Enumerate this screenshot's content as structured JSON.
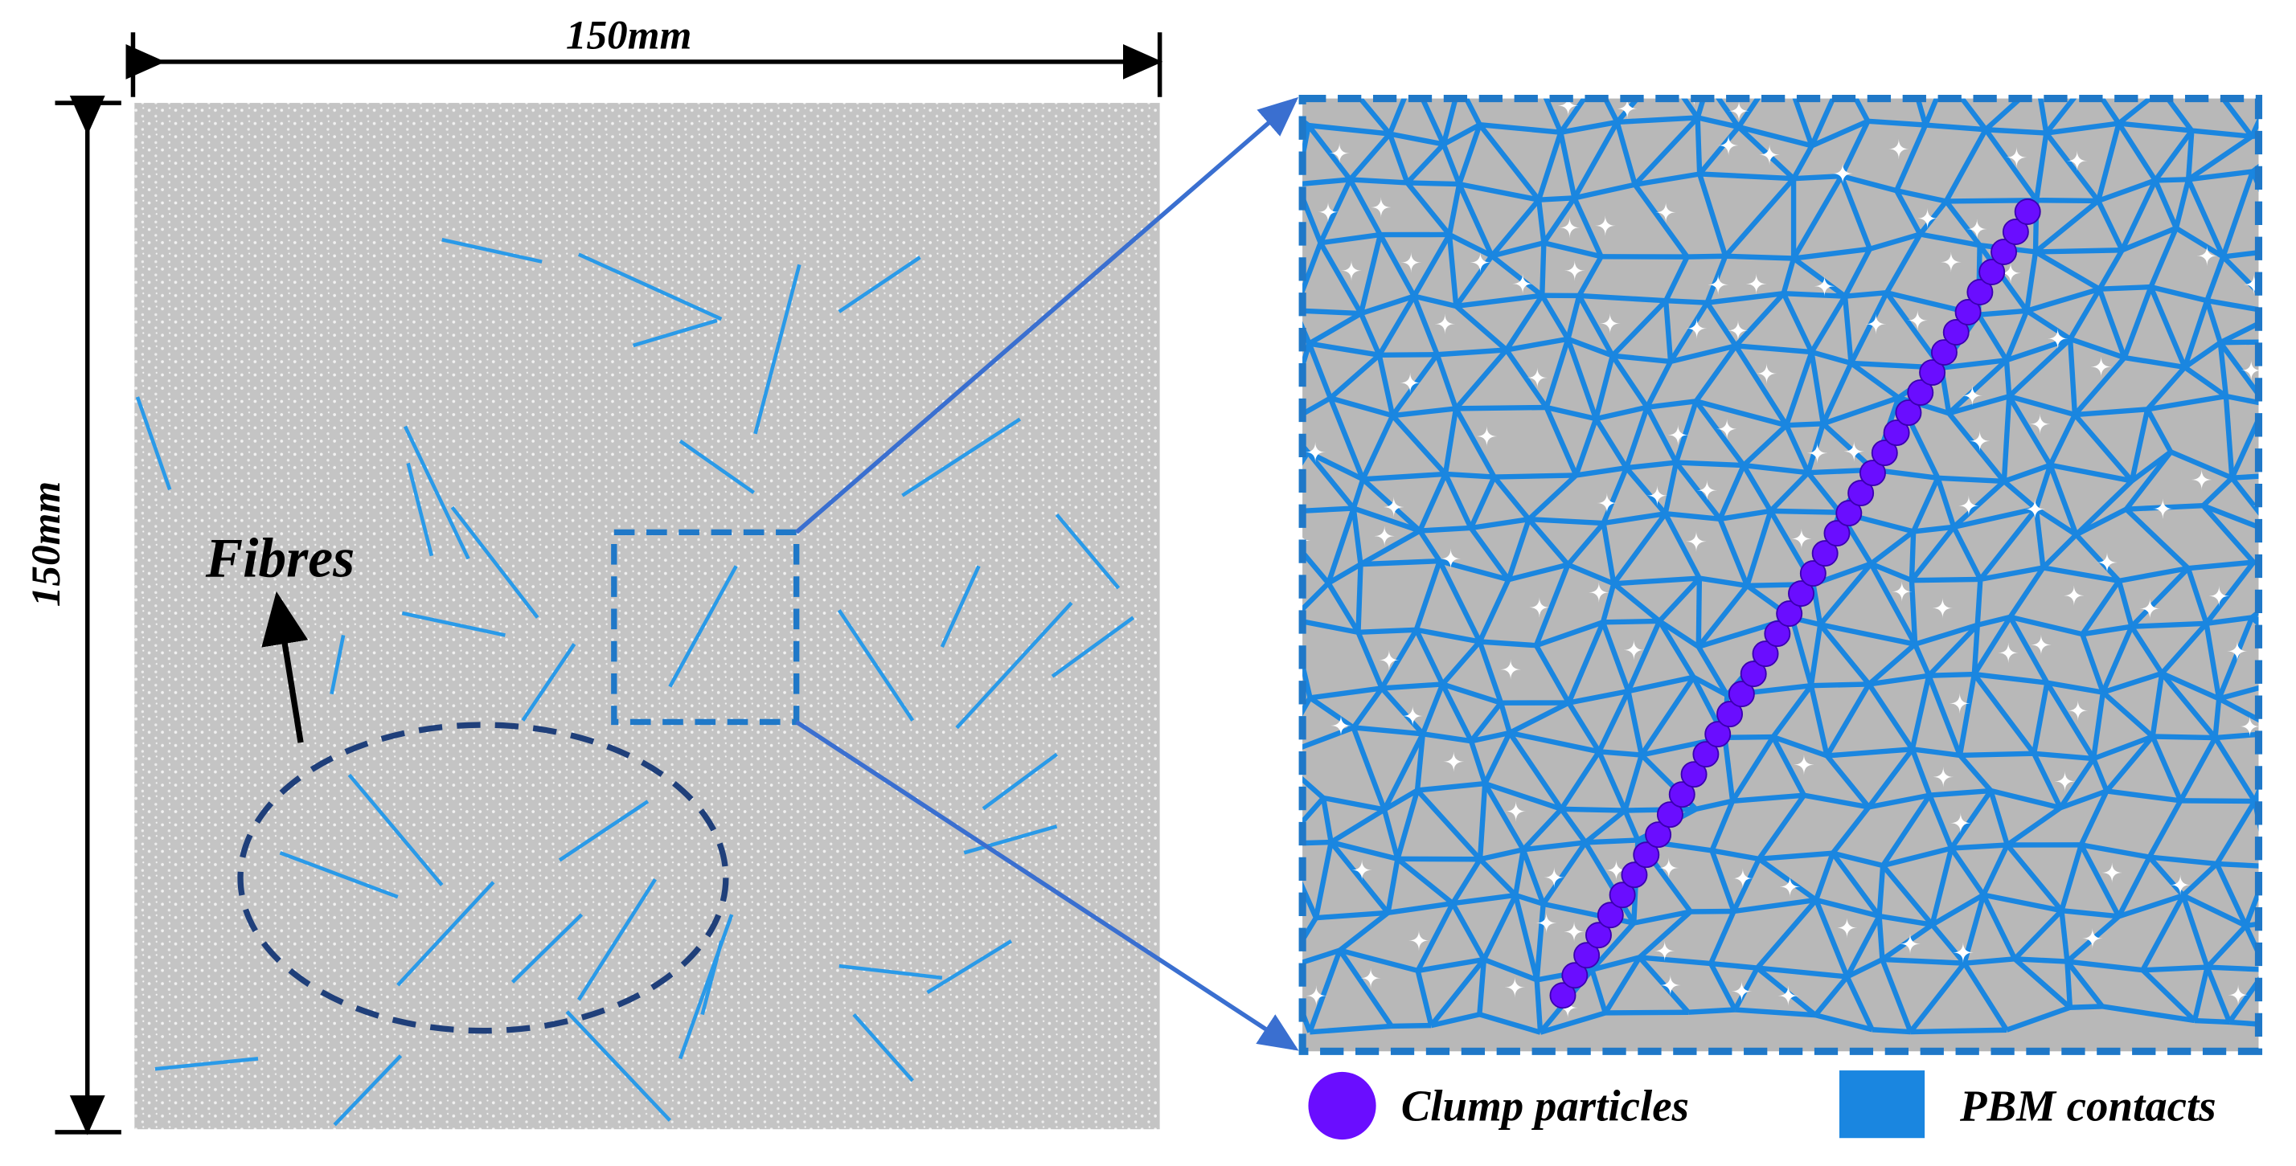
{
  "dimensions": {
    "top": "150mm",
    "left": "150mm"
  },
  "annotation": "Fibres",
  "legend": {
    "items": [
      {
        "label": "Clump particles"
      },
      {
        "label": "PBM contacts"
      }
    ]
  }
}
